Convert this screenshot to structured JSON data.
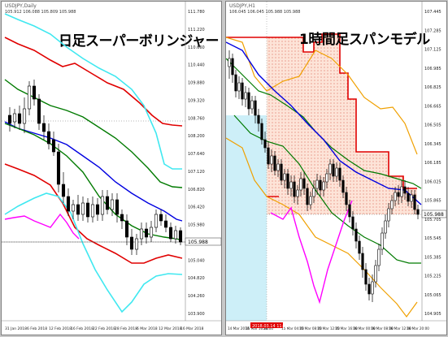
{
  "left_panel": {
    "title": "USDJPY,Daily",
    "ohlc": "105.912 106.088 105.809 105.988",
    "heading": "日足スーパーボリンジャー",
    "price_label": "105.988",
    "y_ticks": [
      "111.780",
      "111.220",
      "110.660",
      "110.440",
      "109.880",
      "109.320",
      "108.760",
      "108.200",
      "107.640",
      "107.120",
      "106.820",
      "106.420",
      "105.980",
      "105.540",
      "105.040",
      "104.820",
      "104.260",
      "103.900"
    ],
    "x_ticks": [
      "31 Jan 2018",
      "6 Feb 2018",
      "12 Feb 2018",
      "16 Feb 2018",
      "22 Feb 2018",
      "28 Feb 2018",
      "6 Mar 2018",
      "12 Mar 2018",
      "16 Mar 2018"
    ]
  },
  "right_panel": {
    "title": "USDJPY,H1",
    "ohlc": "106.045 106.045 105.988 105.988",
    "heading": "1時間足スパンモデル",
    "price_label": "105.988",
    "highlight_label": "2018.03.14 11:00",
    "y_ticks": [
      "107.445",
      "107.285",
      "107.125",
      "106.985",
      "106.825",
      "106.665",
      "106.505",
      "106.345",
      "106.185",
      "106.025",
      "105.865",
      "105.705",
      "105.545",
      "105.385",
      "105.225",
      "105.065",
      "104.905"
    ],
    "x_ticks": [
      "14 Mar 2018",
      "15 Mar 16:00",
      "20:00",
      "15 Mar 04:00",
      "15 Mar 08:00",
      "15 Mar 12:00",
      "15 Mar 16:00",
      "16 Mar 00:00",
      "16 Mar 08:00",
      "16 Mar 12:00",
      "16 Mar 20:00"
    ]
  },
  "colors": {
    "red_band": "#e00000",
    "green_band": "#007a00",
    "cyan_band": "#40e8f0",
    "blue_ma": "#0000e0",
    "magenta_lag": "#ff00ff",
    "orange_band": "#f0a000",
    "span_cloud": "#fde0d0"
  }
}
